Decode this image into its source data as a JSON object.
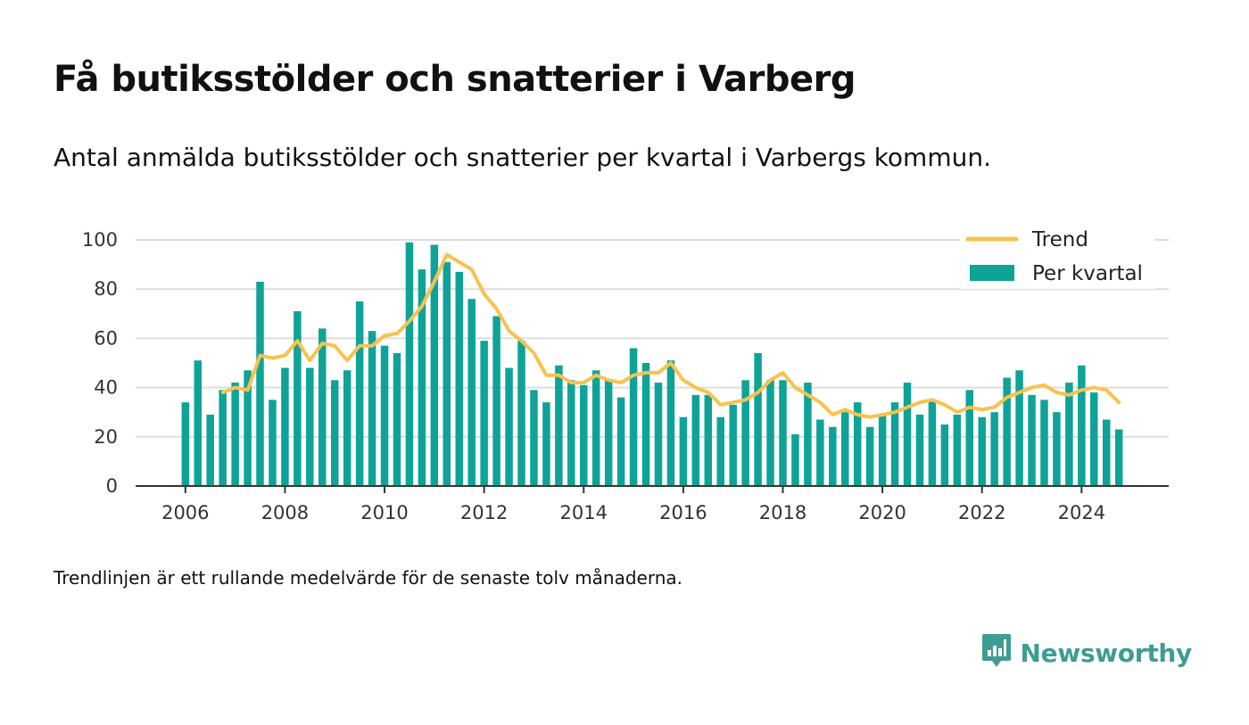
{
  "title": "Få butiksstölder och snatterier i Varberg",
  "subtitle": "Antal anmälda butiksstölder och snatterier per kvartal i Varbergs kommun.",
  "footnote": "Trendlinjen är ett rullande medelvärde för de senaste tolv månaderna.",
  "brand": {
    "name": "Newsworthy",
    "icon": "newsworthy-logo-icon",
    "color": "#3f9c93"
  },
  "colors": {
    "bar": "#0fa398",
    "trend": "#f7c24f",
    "grid": "#dddddd",
    "axis": "#333333"
  },
  "chart_data": {
    "type": "bar",
    "x_start": 2006.0,
    "x_step": 0.25,
    "xlim": [
      2005.0,
      2025.75
    ],
    "ylim": [
      0,
      100
    ],
    "xticks": [
      "2006",
      "2008",
      "2010",
      "2012",
      "2014",
      "2016",
      "2018",
      "2020",
      "2022",
      "2024"
    ],
    "yticks": [
      "0",
      "20",
      "40",
      "60",
      "80",
      "100"
    ],
    "grid": true,
    "legend_position": "top-right",
    "series": [
      {
        "name": "Per kvartal",
        "kind": "bar",
        "values": [
          34,
          51,
          29,
          39,
          42,
          47,
          83,
          35,
          48,
          71,
          48,
          64,
          43,
          47,
          75,
          63,
          57,
          54,
          99,
          88,
          98,
          91,
          87,
          76,
          59,
          69,
          48,
          59,
          39,
          34,
          49,
          43,
          41,
          47,
          43,
          36,
          56,
          50,
          42,
          51,
          28,
          37,
          37,
          28,
          33,
          43,
          54,
          43,
          43,
          21,
          42,
          27,
          24,
          30,
          34,
          24,
          29,
          34,
          42,
          29,
          35,
          25,
          29,
          39,
          28,
          30,
          44,
          47,
          37,
          35,
          30,
          42,
          49,
          38,
          27,
          23
        ]
      },
      {
        "name": "Trend",
        "kind": "line",
        "start_index": 3,
        "values": [
          38,
          40,
          39,
          53,
          52,
          53,
          59,
          51,
          58,
          57,
          51,
          57,
          57,
          61,
          62,
          67,
          73,
          83,
          94,
          91,
          88,
          78,
          72,
          63,
          59,
          54,
          45,
          45,
          42,
          42,
          45,
          43,
          42,
          45,
          46,
          46,
          50,
          43,
          40,
          38,
          33,
          34,
          35,
          38,
          43,
          46,
          40,
          37,
          34,
          29,
          31,
          29,
          28,
          29,
          30,
          32,
          34,
          35,
          33,
          30,
          32,
          31,
          32,
          36,
          38,
          40,
          41,
          38,
          37,
          39,
          40,
          39,
          34
        ]
      }
    ]
  }
}
